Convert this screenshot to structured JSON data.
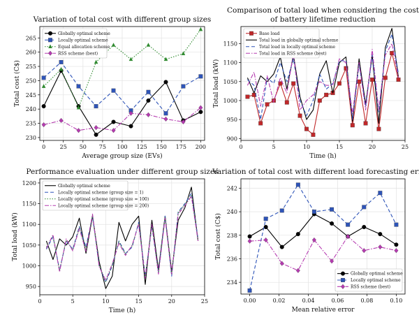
{
  "chart_data": [
    {
      "type": "line",
      "title": "Variation of total cost with different group sizes",
      "xlabel": "Average group size (EVs)",
      "ylabel": "Total cost (C$)",
      "xlim": [
        -5,
        205
      ],
      "ylim": [
        229,
        269
      ],
      "xticks": [
        0,
        25,
        50,
        75,
        100,
        125,
        150,
        175,
        200
      ],
      "yticks": [
        230,
        235,
        240,
        245,
        250,
        255,
        260,
        265
      ],
      "grid": true,
      "legend": "upper-left",
      "series": [
        {
          "name": "Globally optimal scheme",
          "color": "#000000",
          "dash": "",
          "marker": "circle",
          "x": [
            0,
            22.2,
            44.4,
            66.7,
            88.9,
            111.1,
            133.3,
            155.6,
            177.8,
            200
          ],
          "y": [
            241,
            253.5,
            241,
            231,
            235.5,
            234,
            243,
            249.5,
            236,
            239
          ]
        },
        {
          "name": "Locally optimal scheme",
          "color": "#2e54b8",
          "dash": "5,3",
          "marker": "square",
          "x": [
            0,
            22.2,
            44.4,
            66.7,
            88.9,
            111.1,
            133.3,
            155.6,
            177.8,
            200
          ],
          "y": [
            251,
            256.5,
            248,
            241,
            246.5,
            239.5,
            246,
            238.5,
            248,
            251.5
          ]
        },
        {
          "name": "Equal allocation scheme",
          "color": "#2f8a2f",
          "dash": "1.5,2",
          "marker": "triangle",
          "x": [
            0,
            22.2,
            44.4,
            66.7,
            88.9,
            111.1,
            133.3,
            155.6,
            177.8,
            200
          ],
          "y": [
            248,
            254,
            240.5,
            256.5,
            262.5,
            257.5,
            262.5,
            257.5,
            259.5,
            268
          ]
        },
        {
          "name": "RSS scheme (best)",
          "color": "#b53ab0",
          "dash": "6,2,1.5,2",
          "marker": "diamond",
          "x": [
            0,
            22.2,
            44.4,
            66.7,
            88.9,
            111.1,
            133.3,
            155.6,
            177.8,
            200
          ],
          "y": [
            234.5,
            236,
            232.5,
            233.5,
            232.5,
            238.5,
            238,
            236.5,
            235.5,
            240.5
          ]
        }
      ]
    },
    {
      "type": "line",
      "title": "Comparison of total load when considering the cost of battery lifetime reduction",
      "title_lines": [
        "Comparison of total load when considering the cost",
        "of battery lifetime reduction"
      ],
      "xlabel": "Time (h)",
      "ylabel": "Total load (kW)",
      "xlim": [
        0,
        25
      ],
      "ylim": [
        895,
        1195
      ],
      "xticks": [
        0,
        5,
        10,
        15,
        20,
        25
      ],
      "yticks": [
        900,
        950,
        1000,
        1050,
        1100,
        1150
      ],
      "grid": true,
      "legend": "upper-left",
      "series": [
        {
          "name": "Base load",
          "color": "#c0282a",
          "dash": "",
          "marker": "square",
          "x": [
            1,
            2,
            3,
            4,
            5,
            6,
            7,
            8,
            9,
            10,
            11,
            12,
            13,
            14,
            15,
            16,
            17,
            18,
            19,
            20,
            21,
            22,
            23,
            24
          ],
          "y": [
            1010,
            1015,
            940,
            990,
            1000,
            1045,
            995,
            1045,
            960,
            925,
            910,
            1000,
            1015,
            1020,
            1045,
            1085,
            935,
            1050,
            940,
            1055,
            925,
            1060,
            1125,
            1055
          ]
        },
        {
          "name": "Total load in globally optimal scheme",
          "color": "#000000",
          "dash": "",
          "marker": "",
          "x": [
            1,
            2,
            3,
            4,
            5,
            6,
            7,
            8,
            9,
            10,
            11,
            12,
            13,
            14,
            15,
            16,
            17,
            18,
            19,
            20,
            21,
            22,
            23,
            24
          ],
          "y": [
            1060,
            1020,
            1065,
            1050,
            1070,
            1115,
            1030,
            1120,
            1010,
            950,
            975,
            1070,
            1105,
            1020,
            1100,
            1115,
            945,
            1110,
            990,
            1120,
            940,
            1140,
            1190,
            1060
          ]
        },
        {
          "name": "Total load in locally optimal scheme",
          "color": "#2e54b8",
          "dash": "5,3",
          "marker": "",
          "x": [
            1,
            2,
            3,
            4,
            5,
            6,
            7,
            8,
            9,
            10,
            11,
            12,
            13,
            14,
            15,
            16,
            17,
            18,
            19,
            20,
            21,
            22,
            23,
            24
          ],
          "y": [
            1055,
            1040,
            950,
            1060,
            1045,
            1100,
            1050,
            1110,
            1000,
            960,
            1000,
            1070,
            1030,
            1045,
            1105,
            1105,
            950,
            1095,
            985,
            1120,
            970,
            1130,
            1175,
            1070
          ]
        },
        {
          "name": "Total load in RSS scheme (best)",
          "color": "#b53ab0",
          "dash": "6,2,1.5,2",
          "marker": "",
          "x": [
            1,
            2,
            3,
            4,
            5,
            6,
            7,
            8,
            9,
            10,
            11,
            12,
            13,
            14,
            15,
            16,
            17,
            18,
            19,
            20,
            21,
            22,
            23,
            24
          ],
          "y": [
            1040,
            1075,
            985,
            1065,
            995,
            1060,
            1020,
            1125,
            975,
            1000,
            1015,
            1050,
            1040,
            1040,
            1110,
            1100,
            965,
            1100,
            975,
            1135,
            975,
            1120,
            1150,
            1060
          ]
        }
      ]
    },
    {
      "type": "line",
      "title": "Performance evaluation under different group sizes",
      "xlabel": "Time (h)",
      "ylabel": "Total load (kW)",
      "xlim": [
        0,
        25
      ],
      "ylim": [
        930,
        1210
      ],
      "xticks": [
        0,
        5,
        10,
        15,
        20,
        25
      ],
      "yticks": [
        950,
        1000,
        1050,
        1100,
        1150,
        1200
      ],
      "grid": true,
      "legend": "upper-left",
      "series": [
        {
          "name": "Globally optimal scheme",
          "color": "#000000",
          "dash": "",
          "marker": "",
          "x": [
            1,
            2,
            3,
            4,
            5,
            6,
            7,
            8,
            9,
            10,
            11,
            12,
            13,
            14,
            15,
            16,
            17,
            18,
            19,
            20,
            21,
            22,
            23,
            24
          ],
          "y": [
            1060,
            1015,
            1065,
            1050,
            1070,
            1115,
            1030,
            1120,
            1010,
            945,
            975,
            1105,
            1060,
            1100,
            1120,
            955,
            1110,
            990,
            1120,
            985,
            1110,
            1140,
            1190,
            1060
          ]
        },
        {
          "name": "Locally optimal scheme (group size = 1)",
          "color": "#2e54b8",
          "dash": "5,3",
          "marker": "",
          "x": [
            1,
            2,
            3,
            4,
            5,
            6,
            7,
            8,
            9,
            10,
            11,
            12,
            13,
            14,
            15,
            16,
            17,
            18,
            19,
            20,
            21,
            22,
            23,
            24
          ],
          "y": [
            1040,
            1070,
            990,
            1060,
            1040,
            1095,
            1045,
            1120,
            1000,
            960,
            1000,
            1060,
            1030,
            1045,
            1105,
            975,
            1095,
            985,
            1120,
            975,
            1130,
            1150,
            1175,
            1065
          ]
        },
        {
          "name": "Locally optimal scheme (group size = 100)",
          "color": "#2f8a2f",
          "dash": "1.5,2",
          "marker": "",
          "x": [
            1,
            2,
            3,
            4,
            5,
            6,
            7,
            8,
            9,
            10,
            11,
            12,
            13,
            14,
            15,
            16,
            17,
            18,
            19,
            20,
            21,
            22,
            23,
            24
          ],
          "y": [
            1045,
            1072,
            988,
            1062,
            1038,
            1092,
            1040,
            1122,
            1002,
            962,
            1002,
            1058,
            1028,
            1048,
            1102,
            972,
            1098,
            982,
            1118,
            978,
            1128,
            1148,
            1170,
            1062
          ]
        },
        {
          "name": "Locally optimal scheme (group size = 200)",
          "color": "#b53ab0",
          "dash": "6,2,1.5,2",
          "marker": "",
          "x": [
            1,
            2,
            3,
            4,
            5,
            6,
            7,
            8,
            9,
            10,
            11,
            12,
            13,
            14,
            15,
            16,
            17,
            18,
            19,
            20,
            21,
            22,
            23,
            24
          ],
          "y": [
            1042,
            1075,
            985,
            1065,
            1036,
            1090,
            1035,
            1125,
            998,
            965,
            1005,
            1055,
            1025,
            1050,
            1100,
            970,
            1100,
            980,
            1115,
            980,
            1125,
            1145,
            1168,
            1060
          ]
        }
      ]
    },
    {
      "type": "line",
      "title": "Variation of total cost with different load forecasting errors",
      "xlabel": "Mean relative error",
      "ylabel": "Total cost (C$)",
      "xlim": [
        -0.006,
        0.106
      ],
      "ylim": [
        233,
        242.8
      ],
      "xticks": [
        0.0,
        0.02,
        0.04,
        0.06,
        0.08,
        0.1
      ],
      "xticklabels": [
        "0.00",
        "0.02",
        "0.04",
        "0.06",
        "0.08",
        "0.10"
      ],
      "yticks": [
        234,
        236,
        238,
        240,
        242
      ],
      "grid": true,
      "legend": "lower-right",
      "series": [
        {
          "name": "Globally optimal scheme",
          "color": "#000000",
          "dash": "",
          "marker": "circle",
          "x": [
            0,
            0.011,
            0.022,
            0.033,
            0.044,
            0.056,
            0.067,
            0.078,
            0.089,
            0.1
          ],
          "y": [
            237.9,
            238.7,
            237,
            238.1,
            239.8,
            239,
            237.9,
            238.7,
            238.1,
            237.2
          ]
        },
        {
          "name": "Locally optimal scheme",
          "color": "#2e54b8",
          "dash": "5,3",
          "marker": "square",
          "x": [
            0,
            0.011,
            0.022,
            0.033,
            0.044,
            0.056,
            0.067,
            0.078,
            0.089,
            0.1
          ],
          "y": [
            233.3,
            239.4,
            240.1,
            242.3,
            240,
            240.2,
            238.9,
            240.4,
            241.6,
            238.9
          ]
        },
        {
          "name": "RSS scheme (best)",
          "color": "#b53ab0",
          "dash": "6,2,1.5,2",
          "marker": "diamond",
          "x": [
            0,
            0.011,
            0.022,
            0.033,
            0.044,
            0.056,
            0.067,
            0.078,
            0.089,
            0.1
          ],
          "y": [
            237.5,
            237.6,
            235.6,
            235,
            237.6,
            235.8,
            237.9,
            236.7,
            237,
            236.7
          ]
        }
      ]
    }
  ]
}
